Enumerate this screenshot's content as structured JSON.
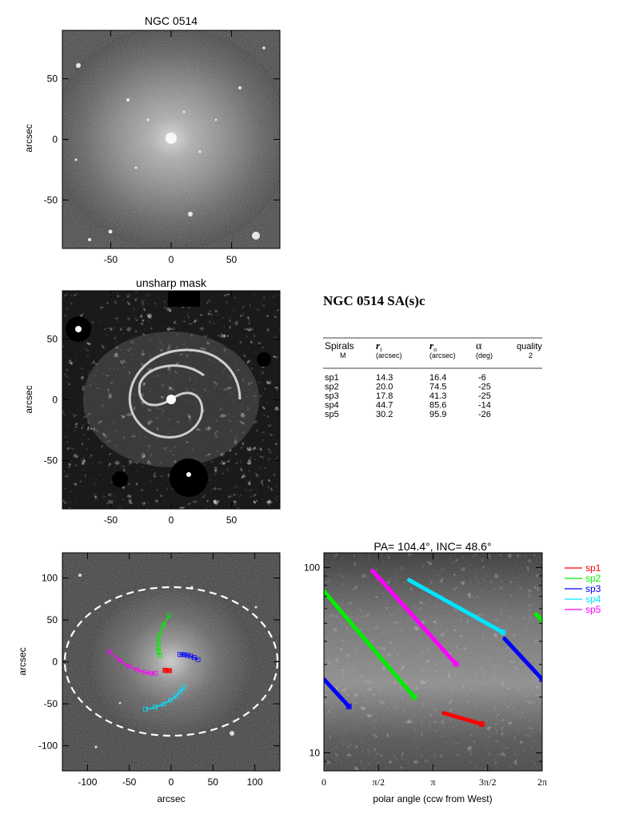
{
  "panels": {
    "image": {
      "title": "NGC 0514",
      "ylabel": "arcsec",
      "xlim": [
        -90,
        90
      ],
      "ylim": [
        -90,
        90
      ],
      "xticks": [
        -50,
        0,
        50
      ],
      "yticks": [
        50,
        0,
        -50
      ]
    },
    "unsharp": {
      "title": "unsharp mask",
      "ylabel": "arcsec",
      "xlim": [
        -90,
        90
      ],
      "ylim": [
        -90,
        90
      ],
      "xticks": [
        -50,
        0,
        50
      ],
      "yticks": [
        50,
        0,
        -50
      ]
    },
    "overlay": {
      "xlabel": "arcsec",
      "ylabel": "arcsec",
      "xlim": [
        -130,
        130
      ],
      "ylim": [
        -130,
        130
      ],
      "xticks": [
        -100,
        -50,
        0,
        50,
        100
      ],
      "yticks": [
        100,
        50,
        0,
        -50,
        -100
      ]
    }
  },
  "info": {
    "title": "NGC 0514  SA(s)c",
    "headers": {
      "spirals": "Spirals",
      "spirals_sub": "M",
      "ri": "r",
      "ri_sub": "i",
      "ri_unit": "(arcsec)",
      "ro": "r",
      "ro_sub": "o",
      "ro_unit": "(arcsec)",
      "alpha": "α",
      "alpha_unit": "(deg)",
      "quality": "quality",
      "quality_val": "2"
    },
    "rows": [
      {
        "name": "sp1",
        "ri": "14.3",
        "ro": "16.4",
        "alpha": "-6"
      },
      {
        "name": "sp2",
        "ri": "20.0",
        "ro": "74.5",
        "alpha": "-25"
      },
      {
        "name": "sp3",
        "ri": "17.8",
        "ro": "41.3",
        "alpha": "-25"
      },
      {
        "name": "sp4",
        "ri": "44.7",
        "ro": "85.6",
        "alpha": "-14"
      },
      {
        "name": "sp5",
        "ri": "30.2",
        "ro": "95.9",
        "alpha": "-26"
      }
    ]
  },
  "chart_data": {
    "type": "line",
    "title": "PA= 104.4°, INC=  48.6°",
    "xlabel": "polar angle (ccw from West)",
    "xticks": [
      "0",
      "π/2",
      "π",
      "3π/2",
      "2π"
    ],
    "ylim": [
      8,
      120
    ],
    "yscale": "log",
    "yticks": [
      "10",
      "100"
    ],
    "legend_position": "right",
    "series": [
      {
        "name": "sp1",
        "color": "#ff0000",
        "points": [
          [
            3.45,
            16.4
          ],
          [
            4.55,
            14.3
          ]
        ]
      },
      {
        "name": "sp2",
        "color": "#00ee00",
        "points": [
          [
            0.0,
            74.5
          ],
          [
            2.6,
            20.0
          ]
        ],
        "wrap": [
          [
            6.1,
            56.0
          ],
          [
            6.28,
            52.0
          ]
        ]
      },
      {
        "name": "sp3",
        "color": "#0000ff",
        "points": [
          [
            0.0,
            25.0
          ],
          [
            0.72,
            17.8
          ]
        ],
        "wrap": [
          [
            5.2,
            41.3
          ],
          [
            6.28,
            25.0
          ]
        ]
      },
      {
        "name": "sp4",
        "color": "#00e5ff",
        "points": [
          [
            2.45,
            85.6
          ],
          [
            5.15,
            44.7
          ]
        ]
      },
      {
        "name": "sp5",
        "color": "#ff00ff",
        "points": [
          [
            1.4,
            95.9
          ],
          [
            3.8,
            30.2
          ]
        ]
      }
    ]
  }
}
